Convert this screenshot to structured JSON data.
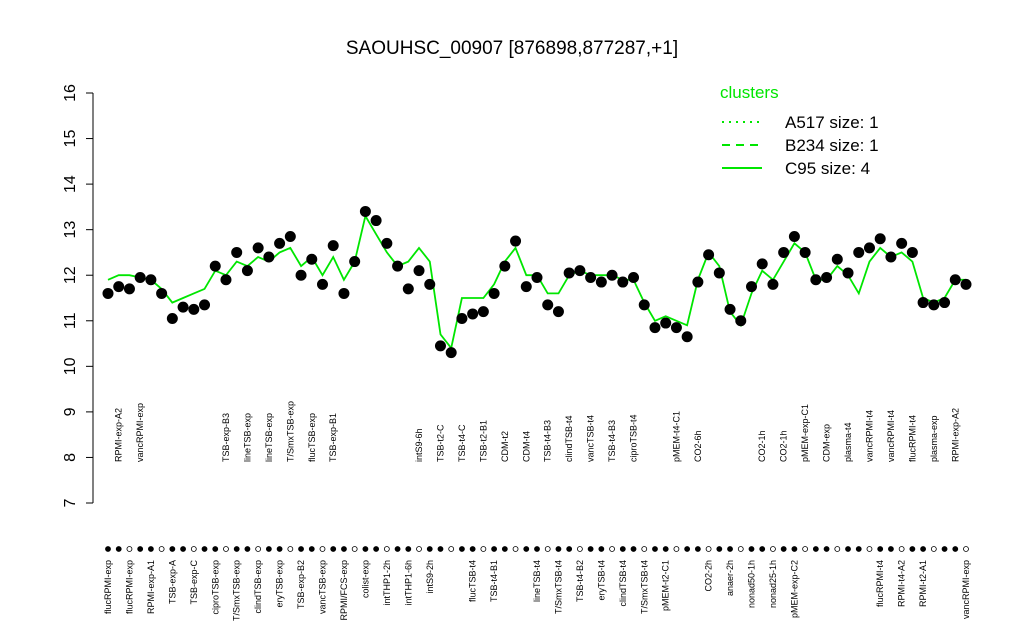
{
  "chart_data": {
    "type": "scatter",
    "title": "SAOUHSC_00907 [876898,877287,+1]",
    "categories": [
      "flucRPMI-exp",
      "RPMI-exp-A2",
      "flucRPMI-exp",
      "vancRPMI-exp",
      "RPMI-exp-A1",
      null,
      "TSB-exp-A",
      null,
      "TSB-exp-C",
      null,
      "ciproTSB-exp",
      "TSB-exp-B3",
      "T/SmxTSB-exp",
      "lineTSB-exp",
      "clindTSB-exp",
      "lineTSB-exp",
      "eryTSB-exp",
      "T/SmxTSB-exp",
      "TSB-exp-B2",
      "flucTSB-exp",
      "vancTSB-exp",
      "TSB-exp-B1",
      "RPMI/FCS-exp",
      null,
      "colist-exp",
      null,
      "intTHP1-2h",
      null,
      "intTHP1-6h",
      "intS9-6h",
      "intS9-2h",
      "TSB-t2-C",
      null,
      "TSB-t4-C",
      "flucTSB-t4",
      "TSB-t2-B1",
      "TSB-t4-B1",
      "CDM-t2",
      null,
      "CDM-t4",
      "lineTSB-t4",
      "TSB-t4-B3",
      "T/SmxTSB-t4",
      "clindTSB-t4",
      "TSB-t4-B2",
      "vancTSB-t4",
      "eryTSB-t4",
      "TSB-t4-B3",
      "clindTSB-t4",
      "ciproTSB-t4",
      "T/SmxTSB-t4",
      null,
      "pMEM-t2-C1",
      "pMEM-t4-C1",
      null,
      "CO2-6h",
      "CO2-2h",
      null,
      "anaer-2h",
      null,
      "nonad50-1h",
      "CO2-1h",
      "nonad25-1h",
      "CO2-1h",
      "pMEM-exp-C2",
      "pMEM-exp-C1",
      null,
      "CDM-exp",
      null,
      "plasma-t4",
      null,
      "vancRPMI-t4",
      "flucRPMI-t4",
      "vancRPMI-t4",
      "RPMI-t4-A2",
      "flucRPMI-t4",
      "RPMI-t2-A1",
      "plasma-exp",
      null,
      "RPMI-exp-A2",
      "vancRPMI-exp"
    ],
    "values": [
      11.6,
      11.75,
      11.7,
      11.95,
      11.9,
      11.6,
      11.05,
      11.3,
      11.25,
      11.35,
      12.2,
      11.9,
      12.5,
      12.1,
      12.6,
      12.4,
      12.7,
      12.85,
      12.0,
      12.35,
      11.8,
      12.65,
      11.6,
      12.3,
      13.4,
      13.2,
      12.7,
      12.2,
      11.7,
      12.1,
      11.8,
      10.45,
      10.3,
      11.05,
      11.15,
      11.2,
      11.6,
      12.2,
      12.75,
      11.75,
      11.95,
      11.35,
      11.2,
      12.05,
      12.1,
      11.95,
      11.85,
      12.0,
      11.85,
      11.95,
      11.35,
      10.85,
      10.95,
      10.85,
      10.65,
      11.85,
      12.45,
      12.05,
      11.25,
      11.0,
      11.75,
      12.25,
      11.8,
      12.5,
      12.85,
      12.5,
      11.9,
      11.95,
      12.35,
      12.05,
      12.5,
      12.6,
      12.8,
      12.4,
      12.7,
      12.5,
      11.4,
      11.35,
      11.4,
      11.9,
      11.8
    ],
    "point_color": "#000000",
    "series": [
      {
        "name": "C95 size: 4",
        "color": "#00e600",
        "dash": "solid",
        "values": [
          11.9,
          12.0,
          12.0,
          11.95,
          11.9,
          11.7,
          11.4,
          11.5,
          11.6,
          11.7,
          12.1,
          12.0,
          12.3,
          12.2,
          12.4,
          12.3,
          12.5,
          12.6,
          12.2,
          12.4,
          12.0,
          12.4,
          11.9,
          12.3,
          13.3,
          12.9,
          12.5,
          12.2,
          12.3,
          12.6,
          12.3,
          10.7,
          10.4,
          11.5,
          11.5,
          11.5,
          11.8,
          12.3,
          12.6,
          12.0,
          12.0,
          11.6,
          11.6,
          12.0,
          12.1,
          12.0,
          12.0,
          12.0,
          11.9,
          11.9,
          11.4,
          11.0,
          11.1,
          11.0,
          10.9,
          11.9,
          12.5,
          12.2,
          11.2,
          10.9,
          11.6,
          12.1,
          11.9,
          12.3,
          12.7,
          12.5,
          11.9,
          11.9,
          12.2,
          12.0,
          11.6,
          12.3,
          12.6,
          12.4,
          12.5,
          12.3,
          11.5,
          11.4,
          11.5,
          11.9,
          11.9
        ]
      }
    ],
    "legend": {
      "title": "clusters",
      "entries": [
        {
          "label": "A517 size: 1",
          "dash": "dotted",
          "color": "#00e600"
        },
        {
          "label": "B234 size: 1",
          "dash": "dashed",
          "color": "#00e600"
        },
        {
          "label": "C95 size: 4",
          "dash": "solid",
          "color": "#00e600"
        }
      ]
    },
    "ylim": [
      7,
      16
    ],
    "yticks": [
      7,
      8,
      9,
      10,
      11,
      12,
      13,
      14,
      15,
      16
    ]
  }
}
